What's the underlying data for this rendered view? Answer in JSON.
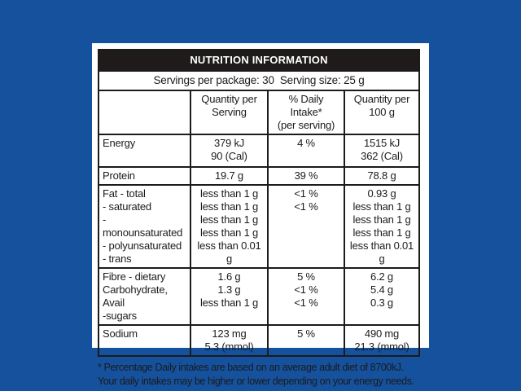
{
  "colors": {
    "background": "#15519C",
    "panel": "#FFFFFF",
    "title_bar_bg": "#1E1B1A",
    "title_text": "#FFFFFF",
    "border_and_text": "#1B1B1B"
  },
  "label": {
    "title": "NUTRITION INFORMATION",
    "servings_line": "Servings per package: 30  Serving size: 25 g",
    "column_headers": {
      "quantity_per_serving": [
        "Quantity per",
        "Serving"
      ],
      "daily_intake": [
        "% Daily Intake*",
        "(per serving)"
      ],
      "quantity_per_100g": [
        "Quantity per",
        "100 g"
      ]
    },
    "rows": [
      {
        "labels": [
          "Energy"
        ],
        "per_serving": [
          "379 kJ",
          "90 (Cal)"
        ],
        "daily_intake": [
          "4 %"
        ],
        "per_100g": [
          "1515 kJ",
          "362 (Cal)"
        ]
      },
      {
        "labels": [
          "Protein"
        ],
        "per_serving": [
          "19.7 g"
        ],
        "daily_intake": [
          "39 %"
        ],
        "per_100g": [
          "78.8 g"
        ]
      },
      {
        "labels": [
          "Fat - total",
          "- saturated",
          "- monounsaturated",
          "- polyunsaturated",
          "- trans"
        ],
        "per_serving": [
          "less than 1 g",
          "less than 1 g",
          "less than 1 g",
          "less than 1 g",
          "less than 0.01 g"
        ],
        "daily_intake": [
          "<1 %",
          "<1 %"
        ],
        "per_100g": [
          "0.93 g",
          "less than 1 g",
          "less than 1 g",
          "less than 1 g",
          "less than 0.01 g"
        ]
      },
      {
        "labels": [
          "Fibre - dietary",
          "Carbohydrate, Avail",
          "-sugars"
        ],
        "per_serving": [
          "1.6 g",
          "1.3 g",
          "less than 1 g"
        ],
        "daily_intake": [
          "5 %",
          "<1 %",
          "<1 %"
        ],
        "per_100g": [
          "6.2 g",
          "5.4 g",
          "0.3 g"
        ]
      },
      {
        "labels": [
          "Sodium"
        ],
        "per_serving": [
          "123 mg",
          "5.3 (mmol)"
        ],
        "daily_intake": [
          "5 %"
        ],
        "per_100g": [
          "490 mg",
          "21.3 (mmol)"
        ]
      }
    ],
    "footnote": [
      "* Percentage Daily intakes are based on an average adult diet of 8700kJ.",
      "Your daily intakes may be higher or lower depending on your energy needs."
    ]
  }
}
